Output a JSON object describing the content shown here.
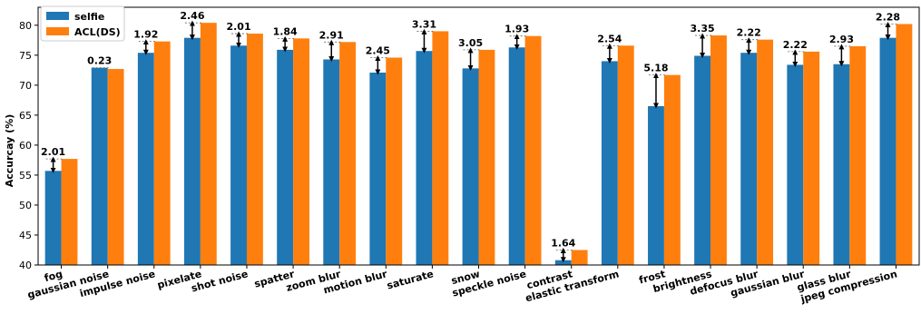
{
  "chart_data": {
    "type": "bar",
    "ylabel": "Accurcay (%)",
    "xlabel": "",
    "ylim": [
      40,
      83
    ],
    "yticks": [
      40,
      45,
      50,
      55,
      60,
      65,
      70,
      75,
      80
    ],
    "grid": false,
    "legend_position": "top-left",
    "categories": [
      "fog",
      "gaussian noise",
      "impulse noise",
      "pixelate",
      "shot noise",
      "spatter",
      "zoom blur",
      "motion blur",
      "saturate",
      "snow",
      "speckle noise",
      "contrast",
      "elastic transform",
      "frost",
      "brightness",
      "defocus blur",
      "gaussian blur",
      "glass blur",
      "jpeg compression"
    ],
    "series": [
      {
        "name": "selfie",
        "color": "#1f77b4",
        "values": [
          55.7,
          72.9,
          75.4,
          77.9,
          76.6,
          75.9,
          74.3,
          72.1,
          75.7,
          72.8,
          76.3,
          40.8,
          74.0,
          66.5,
          74.9,
          75.4,
          73.4,
          73.5,
          77.9
        ]
      },
      {
        "name": "ACL(DS)",
        "color": "#ff7f0e",
        "values": [
          57.7,
          72.7,
          77.3,
          80.4,
          78.6,
          77.8,
          77.2,
          74.6,
          79.0,
          75.9,
          78.2,
          42.5,
          76.6,
          71.7,
          78.3,
          77.6,
          75.6,
          76.5,
          80.2
        ]
      }
    ],
    "annotations": [
      "2.01",
      "0.23",
      "1.92",
      "2.46",
      "2.01",
      "1.84",
      "2.91",
      "2.45",
      "3.31",
      "3.05",
      "1.93",
      "1.64",
      "2.54",
      "5.18",
      "3.35",
      "2.22",
      "2.22",
      "2.93",
      "2.28"
    ]
  }
}
